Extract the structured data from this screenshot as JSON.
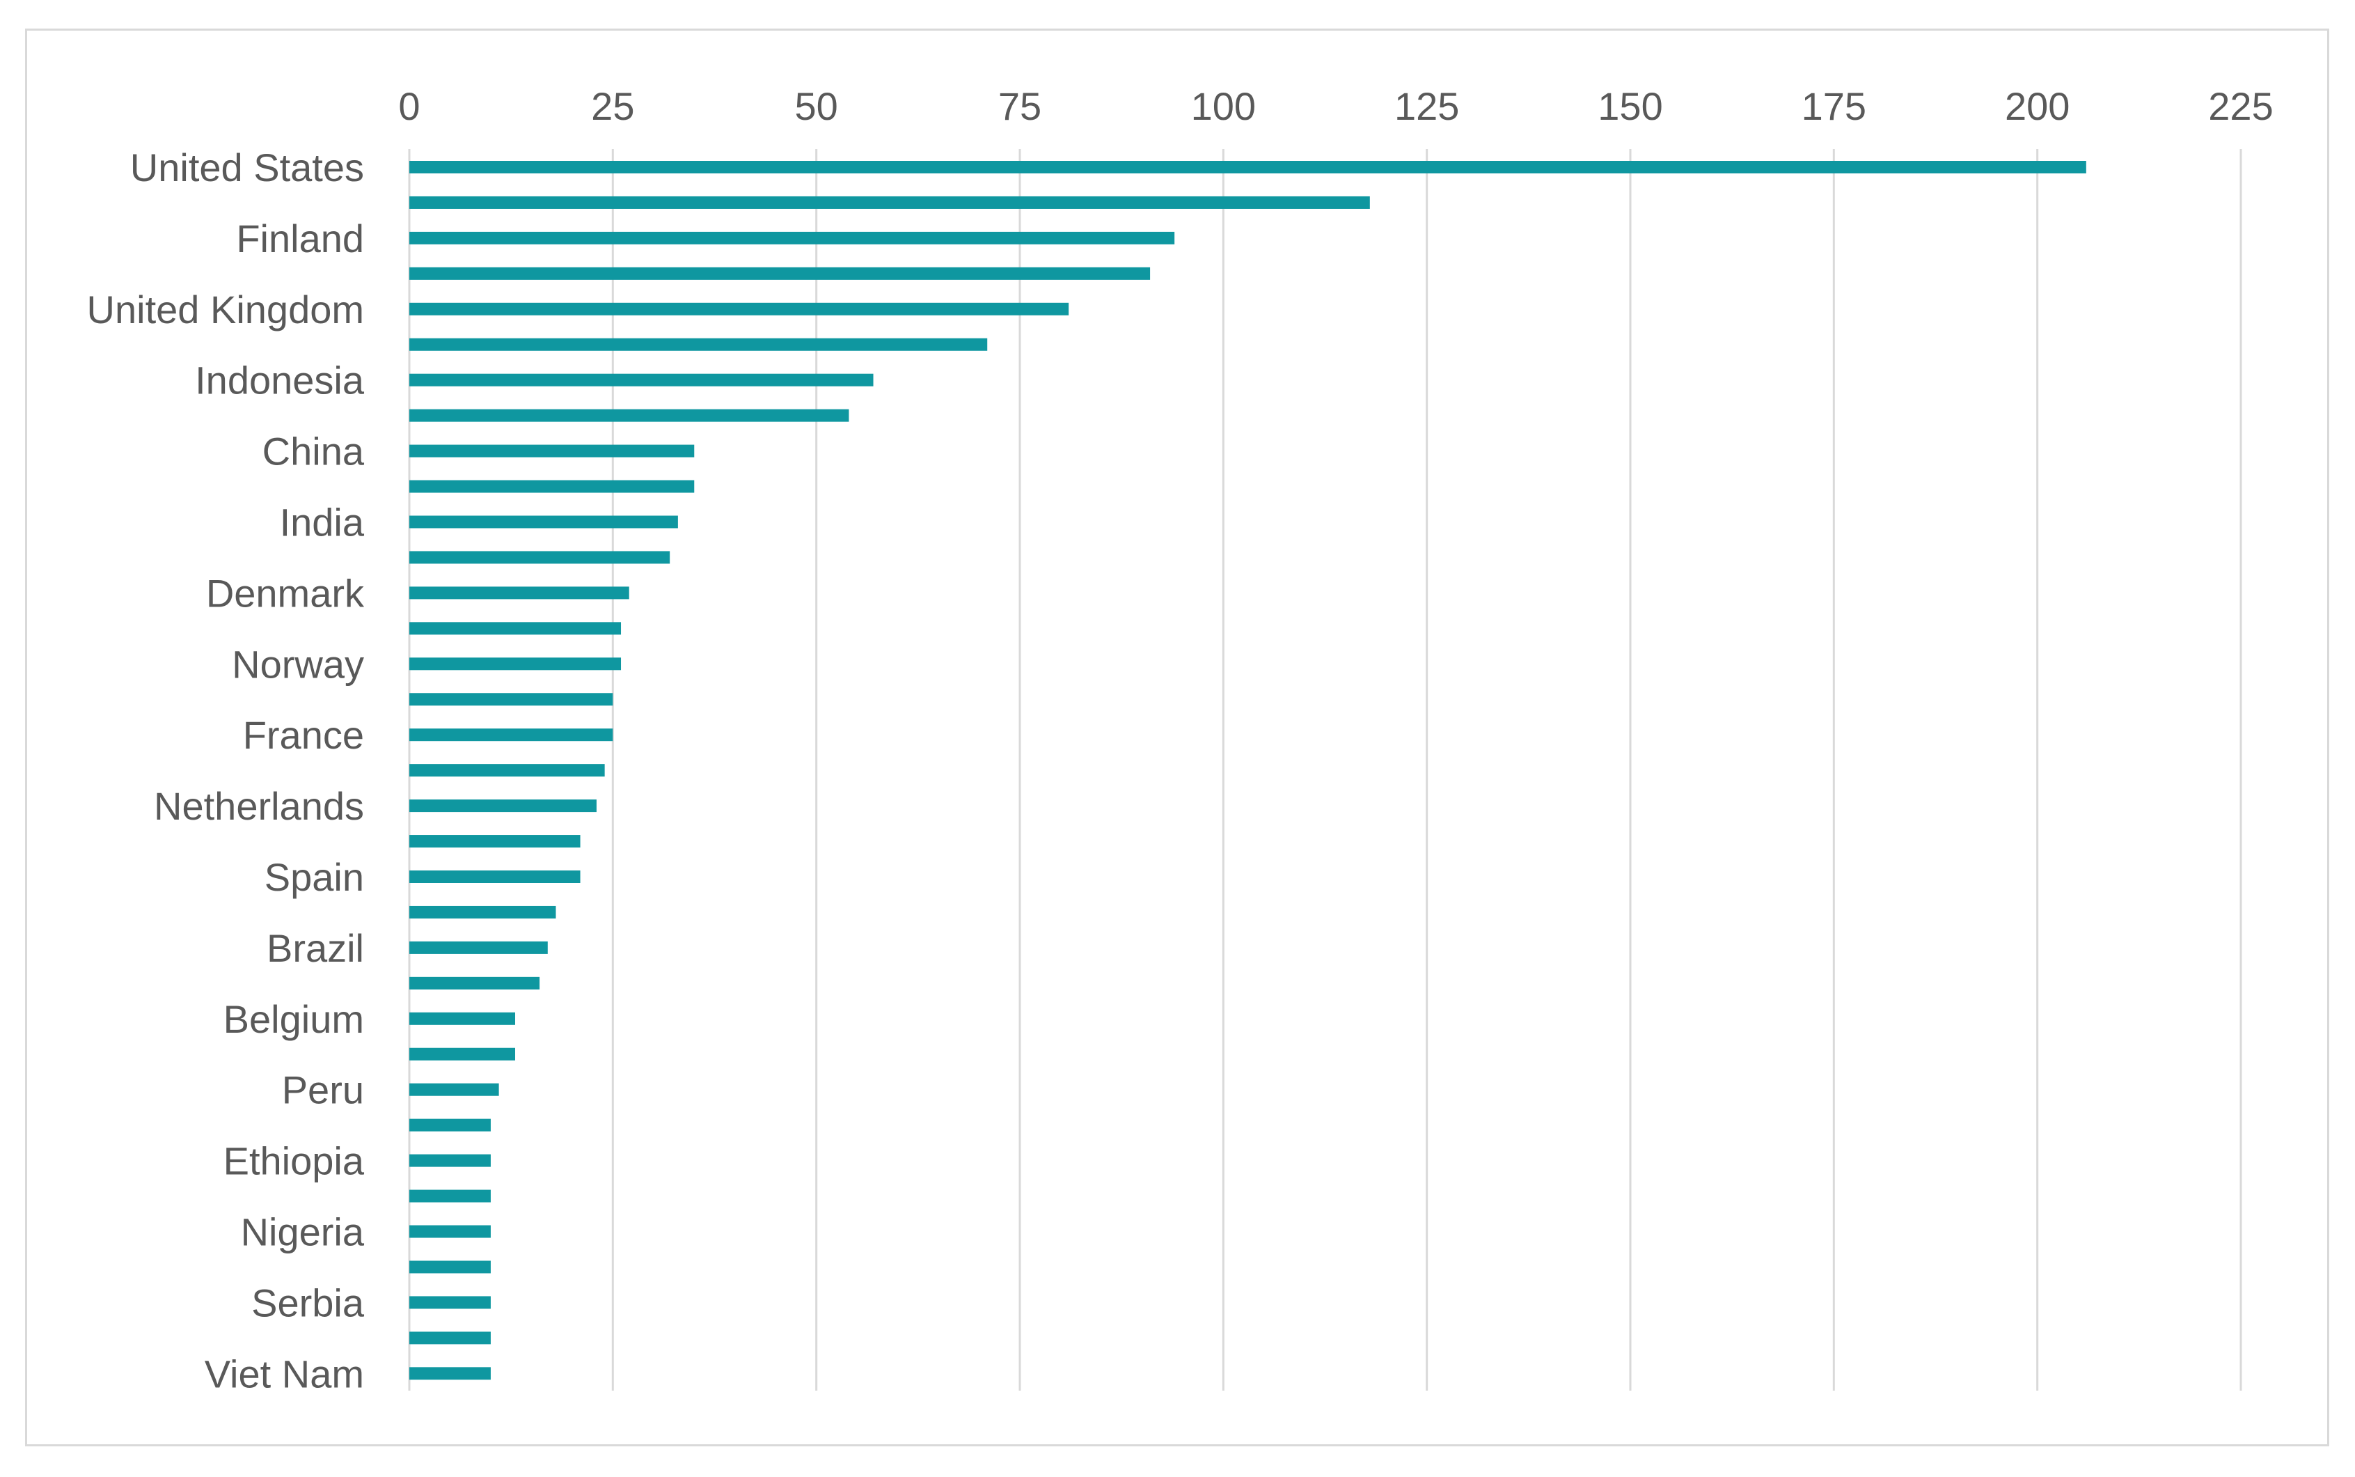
{
  "chart_data": {
    "type": "bar",
    "orientation": "horizontal",
    "x_axis_position": "top",
    "title": "",
    "xlabel": "",
    "ylabel": "",
    "xlim": [
      0,
      225
    ],
    "x_ticks": [
      0,
      25,
      50,
      75,
      100,
      125,
      150,
      175,
      200,
      225
    ],
    "grid": "vertical",
    "bar_color": "#0f97a0",
    "grid_color": "#d9d9d9",
    "categories": [
      "United States",
      "",
      "Finland",
      "",
      "United Kingdom",
      "",
      "Indonesia",
      "",
      "China",
      "",
      "India",
      "",
      "Denmark",
      "",
      "Norway",
      "",
      "France",
      "",
      "Netherlands",
      "",
      "Spain",
      "",
      "Brazil",
      "",
      "Belgium",
      "",
      "Peru",
      "",
      "Ethiopia",
      "",
      "Nigeria",
      "",
      "Serbia",
      "",
      "Viet Nam"
    ],
    "values": [
      206,
      118,
      94,
      91,
      81,
      71,
      57,
      54,
      35,
      35,
      33,
      32,
      27,
      26,
      26,
      25,
      25,
      24,
      23,
      21,
      21,
      18,
      17,
      16,
      13,
      13,
      11,
      10,
      10,
      10,
      10,
      10,
      10,
      10,
      10
    ]
  }
}
